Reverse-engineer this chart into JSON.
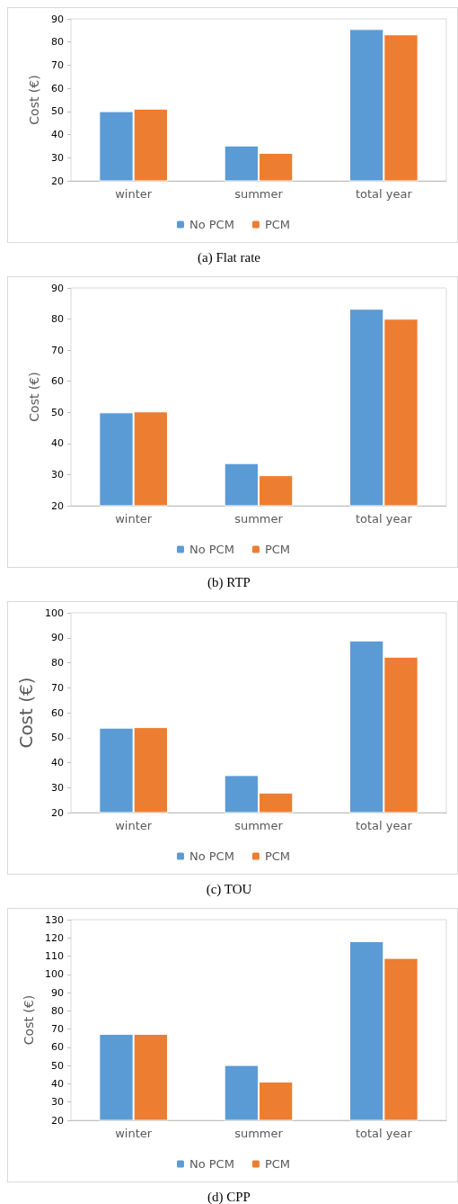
{
  "chart_data": [
    {
      "type": "bar",
      "title": "(a) Flat rate",
      "ylabel": "Cost (€)",
      "categories": [
        "winter",
        "summer",
        "total year"
      ],
      "ylim": [
        20,
        90
      ],
      "yticks": [
        20,
        30,
        40,
        50,
        60,
        70,
        80,
        90
      ],
      "grid": false,
      "legend": "bottom",
      "series": [
        {
          "name": "No PCM",
          "color": "#5b9bd5",
          "values": [
            50.1,
            35.3,
            85.6
          ]
        },
        {
          "name": "PCM",
          "color": "#ed7d31",
          "values": [
            51.2,
            32.1,
            83.3
          ]
        }
      ]
    },
    {
      "type": "bar",
      "title": "(b) RTP",
      "ylabel": "Cost (€)",
      "categories": [
        "winter",
        "summer",
        "total year"
      ],
      "ylim": [
        20,
        90
      ],
      "yticks": [
        20,
        30,
        40,
        50,
        60,
        70,
        80,
        90
      ],
      "grid": false,
      "legend": "bottom",
      "series": [
        {
          "name": "No PCM",
          "color": "#5b9bd5",
          "values": [
            50.0,
            33.7,
            83.3
          ]
        },
        {
          "name": "PCM",
          "color": "#ed7d31",
          "values": [
            50.3,
            29.8,
            80.1
          ]
        }
      ]
    },
    {
      "type": "bar",
      "title": "(c) TOU",
      "ylabel": "Cost (€)",
      "categories": [
        "winter",
        "summer",
        "total year"
      ],
      "ylim": [
        20,
        100
      ],
      "yticks": [
        20,
        30,
        40,
        50,
        60,
        70,
        80,
        90,
        100
      ],
      "grid": false,
      "legend": "bottom",
      "series": [
        {
          "name": "No PCM",
          "color": "#5b9bd5",
          "values": [
            54.0,
            35.0,
            88.9
          ]
        },
        {
          "name": "PCM",
          "color": "#ed7d31",
          "values": [
            54.2,
            28.0,
            82.4
          ]
        }
      ]
    },
    {
      "type": "bar",
      "title": "(d) CPP",
      "ylabel": "Cost (€)",
      "categories": [
        "winter",
        "summer",
        "total year"
      ],
      "ylim": [
        20,
        130
      ],
      "yticks": [
        20,
        30,
        40,
        50,
        60,
        70,
        80,
        90,
        100,
        110,
        120,
        130
      ],
      "grid": false,
      "legend": "bottom",
      "series": [
        {
          "name": "No PCM",
          "color": "#5b9bd5",
          "values": [
            67.4,
            50.3,
            118.2
          ]
        },
        {
          "name": "PCM",
          "color": "#ed7d31",
          "values": [
            67.4,
            41.2,
            109.0
          ]
        }
      ]
    }
  ]
}
